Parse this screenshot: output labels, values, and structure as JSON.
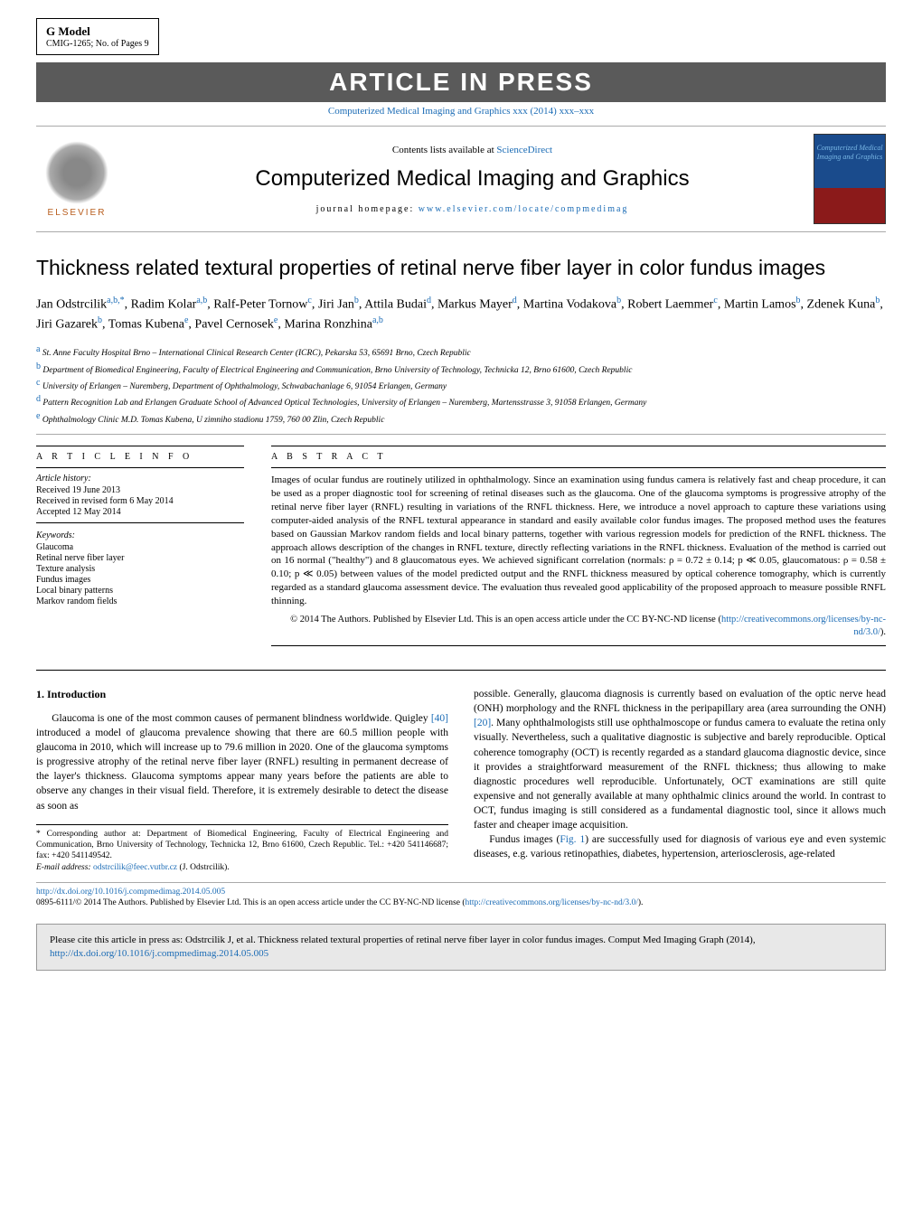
{
  "gmodel": {
    "title": "G Model",
    "sub": "CMIG-1265;   No. of Pages 9"
  },
  "banner": "ARTICLE IN PRESS",
  "journal_ref_text": "Computerized Medical Imaging and Graphics xxx (2014) xxx–xxx",
  "header": {
    "contents_prefix": "Contents lists available at ",
    "contents_link": "ScienceDirect",
    "journal_title": "Computerized Medical Imaging and Graphics",
    "homepage_prefix": "journal homepage: ",
    "homepage_link": "www.elsevier.com/locate/compmedimag",
    "elsevier_label": "ELSEVIER",
    "cover_text": "Computerized Medical Imaging and Graphics"
  },
  "article": {
    "title": "Thickness related textural properties of retinal nerve fiber layer in color fundus images",
    "authors_html": "Jan Odstrcilik<sup class='sup'>a,b,*</sup>, Radim Kolar<sup class='sup'>a,b</sup>, Ralf-Peter Tornow<sup class='sup'>c</sup>, Jiri Jan<sup class='sup'>b</sup>, Attila Budai<sup class='sup'>d</sup>, Markus Mayer<sup class='sup'>d</sup>, Martina Vodakova<sup class='sup'>b</sup>, Robert Laemmer<sup class='sup'>c</sup>, Martin Lamos<sup class='sup'>b</sup>, Zdenek Kuna<sup class='sup'>b</sup>, Jiri Gazarek<sup class='sup'>b</sup>, Tomas Kubena<sup class='sup'>e</sup>, Pavel Cernosek<sup class='sup'>e</sup>, Marina Ronzhina<sup class='sup'>a,b</sup>"
  },
  "affiliations": {
    "a": "St. Anne Faculty Hospital Brno – International Clinical Research Center (ICRC), Pekarska 53, 65691 Brno, Czech Republic",
    "b": "Department of Biomedical Engineering, Faculty of Electrical Engineering and Communication, Brno University of Technology, Technicka 12, Brno 61600, Czech Republic",
    "c": "University of Erlangen – Nuremberg, Department of Ophthalmology, Schwabachanlage 6, 91054 Erlangen, Germany",
    "d": "Pattern Recognition Lab and Erlangen Graduate School of Advanced Optical Technologies, University of Erlangen – Nuremberg, Martensstrasse 3, 91058 Erlangen, Germany",
    "e": "Ophthalmology Clinic M.D. Tomas Kubena, U zimniho stadionu 1759, 760 00 Zlin, Czech Republic"
  },
  "info": {
    "heading": "A R T I C L E   I N F O",
    "history_label": "Article history:",
    "received": "Received 19 June 2013",
    "revised": "Received in revised form 6 May 2014",
    "accepted": "Accepted 12 May 2014",
    "keywords_label": "Keywords:",
    "keywords": [
      "Glaucoma",
      "Retinal nerve fiber layer",
      "Texture analysis",
      "Fundus images",
      "Local binary patterns",
      "Markov random fields"
    ]
  },
  "abstract": {
    "heading": "A B S T R A C T",
    "text": "Images of ocular fundus are routinely utilized in ophthalmology. Since an examination using fundus camera is relatively fast and cheap procedure, it can be used as a proper diagnostic tool for screening of retinal diseases such as the glaucoma. One of the glaucoma symptoms is progressive atrophy of the retinal nerve fiber layer (RNFL) resulting in variations of the RNFL thickness. Here, we introduce a novel approach to capture these variations using computer-aided analysis of the RNFL textural appearance in standard and easily available color fundus images. The proposed method uses the features based on Gaussian Markov random fields and local binary patterns, together with various regression models for prediction of the RNFL thickness. The approach allows description of the changes in RNFL texture, directly reflecting variations in the RNFL thickness. Evaluation of the method is carried out on 16 normal (\"healthy\") and 8 glaucomatous eyes. We achieved significant correlation (normals: ρ = 0.72 ± 0.14; p ≪ 0.05, glaucomatous: ρ = 0.58 ± 0.10; p ≪ 0.05) between values of the model predicted output and the RNFL thickness measured by optical coherence tomography, which is currently regarded as a standard glaucoma assessment device. The evaluation thus revealed good applicability of the proposed approach to measure possible RNFL thinning.",
    "copyright": "© 2014 The Authors. Published by Elsevier Ltd. This is an open access article under the CC BY-NC-ND license (",
    "license_link": "http://creativecommons.org/licenses/by-nc-nd/3.0/",
    "license_close": ")."
  },
  "section1": {
    "heading": "1.  Introduction",
    "p1": "Glaucoma is one of the most common causes of permanent blindness worldwide. Quigley ",
    "p1_ref": "[40]",
    "p1_cont": " introduced a model of glaucoma prevalence showing that there are 60.5 million people with glaucoma in 2010, which will increase up to 79.6 million in 2020. One of the glaucoma symptoms is progressive atrophy of the retinal nerve fiber layer (RNFL) resulting in permanent decrease of the layer's thickness. Glaucoma symptoms appear many years before the patients are able to observe any changes in their visual field. Therefore, it is extremely desirable to detect the disease as soon as",
    "p2": "possible. Generally, glaucoma diagnosis is currently based on evaluation of the optic nerve head (ONH) morphology and the RNFL thickness in the peripapillary area (area surrounding the ONH) ",
    "p2_ref": "[20]",
    "p2_cont": ". Many ophthalmologists still use ophthalmoscope or fundus camera to evaluate the retina only visually. Nevertheless, such a qualitative diagnostic is subjective and barely reproducible. Optical coherence tomography (OCT) is recently regarded as a standard glaucoma diagnostic device, since it provides a straightforward measurement of the RNFL thickness; thus allowing to make diagnostic procedures well reproducible. Unfortunately, OCT examinations are still quite expensive and not generally available at many ophthalmic clinics around the world. In contrast to OCT, fundus imaging is still considered as a fundamental diagnostic tool, since it allows much faster and cheaper image acquisition.",
    "p3": "Fundus images (",
    "p3_ref": "Fig. 1",
    "p3_cont": ") are successfully used for diagnosis of various eye and even systemic diseases, e.g. various retinopathies, diabetes, hypertension, arteriosclerosis, age-related"
  },
  "corresponding": {
    "text": "* Corresponding author at: Department of Biomedical Engineering, Faculty of Electrical Engineering and Communication, Brno University of Technology, Technicka 12, Brno 61600, Czech Republic. Tel.: +420 541146687; fax: +420 541149542.",
    "email_label": "E-mail address: ",
    "email": "odstrcilik@feec.vutbr.cz",
    "email_suffix": " (J. Odstrcilik)."
  },
  "footer": {
    "doi": "http://dx.doi.org/10.1016/j.compmedimag.2014.05.005",
    "line2_pre": "0895-6111/© 2014 The Authors. Published by Elsevier Ltd. This is an open access article under the CC BY-NC-ND license (",
    "line2_link": "http://creativecommons.org/licenses/by-nc-nd/3.0/",
    "line2_post": ")."
  },
  "citebox": {
    "text": "Please cite this article in press as: Odstrcilik J, et al. Thickness related textural properties of retinal nerve fiber layer in color fundus images. Comput Med Imaging Graph (2014), ",
    "link": "http://dx.doi.org/10.1016/j.compmedimag.2014.05.005"
  },
  "colors": {
    "link": "#1a6bb5",
    "banner_bg": "#5a5a5a",
    "cite_bg": "#e8e8e8",
    "elsevier_orange": "#b85c1c"
  }
}
